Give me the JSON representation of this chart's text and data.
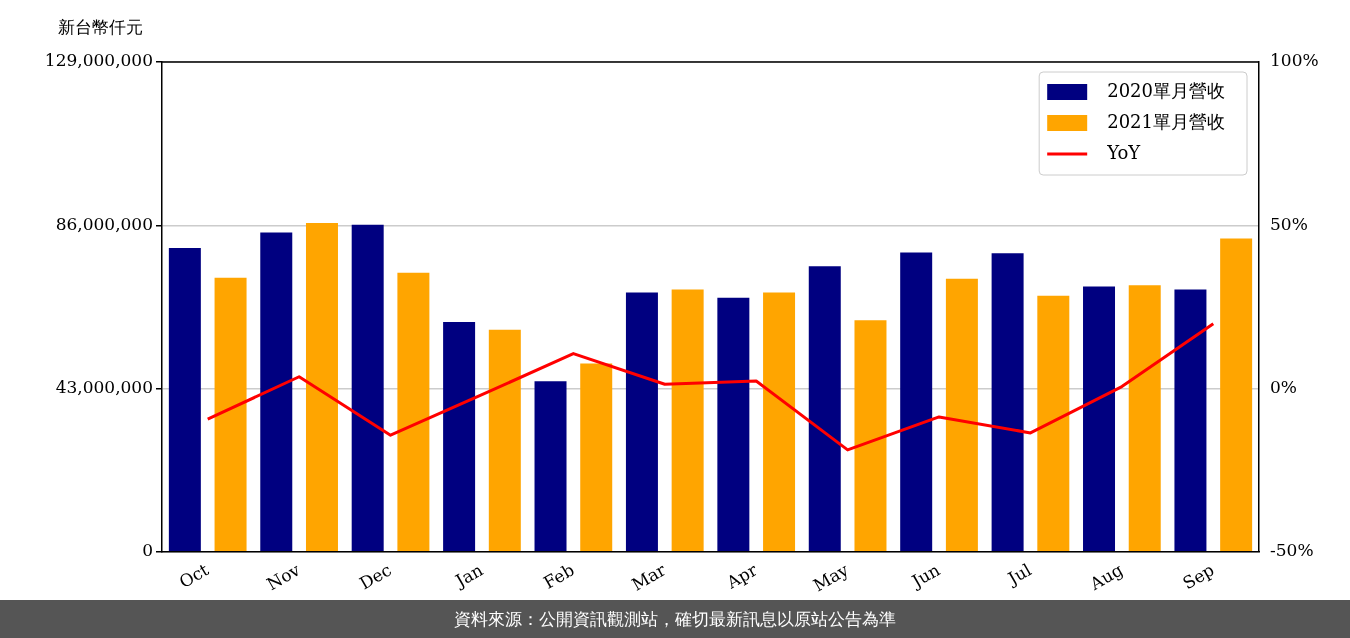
{
  "chart_data": {
    "type": "bar",
    "ylabel": "新台幣仟元",
    "categories": [
      "Oct",
      "Nov",
      "Dec",
      "Jan",
      "Feb",
      "Mar",
      "Apr",
      "May",
      "Jun",
      "Jul",
      "Aug",
      "Sep"
    ],
    "series": [
      {
        "name": "2020單月營收",
        "color": "#000080",
        "values": [
          80000000,
          84100000,
          86100000,
          60500000,
          44900000,
          68300000,
          66900000,
          75200000,
          78800000,
          78600000,
          69900000,
          69100000
        ]
      },
      {
        "name": "2021單月營收",
        "color": "#ffa500",
        "values": [
          72200000,
          86600000,
          73500000,
          58500000,
          49600000,
          69100000,
          68300000,
          61000000,
          71900000,
          67400000,
          70200000,
          82500000
        ]
      },
      {
        "name": "YoY",
        "type": "line",
        "axis": "y2",
        "color": "#ff0000",
        "marker": "none",
        "line_style": "solid",
        "values": [
          -9.4,
          3.6,
          -14.3,
          -1.9,
          10.7,
          1.3,
          2.3,
          -18.8,
          -8.7,
          -13.6,
          0.6,
          19.8
        ]
      }
    ],
    "ylim": [
      0,
      129000000
    ],
    "yticks": [
      {
        "value": 0,
        "label": "0"
      },
      {
        "value": 43000000,
        "label": "43,000,000"
      },
      {
        "value": 86000000,
        "label": "86,000,000"
      },
      {
        "value": 129000000,
        "label": "129,000,000"
      }
    ],
    "y2lim": [
      -50,
      100
    ],
    "y2ticks": [
      {
        "value": -50,
        "label": "-50%"
      },
      {
        "value": 0,
        "label": "0%"
      },
      {
        "value": 50,
        "label": "50%"
      },
      {
        "value": 100,
        "label": "100%"
      }
    ],
    "grid": "y",
    "legend": "top right",
    "annotations": [
      "資料來源：公開資訊觀測站，確切最新訊息以原站公告為準"
    ]
  }
}
